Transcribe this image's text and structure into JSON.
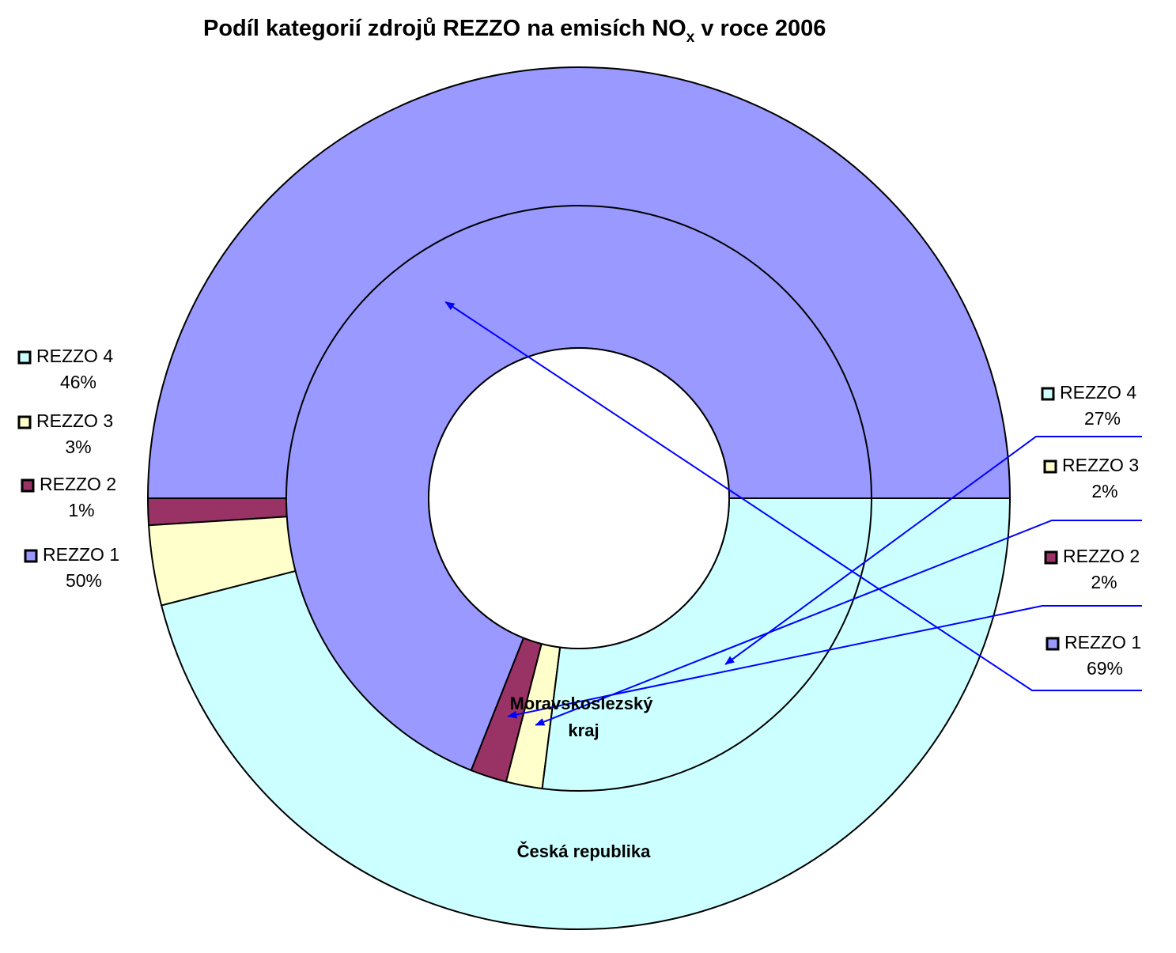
{
  "chart_data": {
    "type": "donut",
    "title_main": "Podíl kategorií zdrojů REZZO na emisích NO",
    "title_sub": "x",
    "title_tail": " v roce 2006",
    "categories": [
      "REZZO 1",
      "REZZO 2",
      "REZZO 3",
      "REZZO 4"
    ],
    "colors": {
      "REZZO 1": "#9999ff",
      "REZZO 2": "#993366",
      "REZZO 3": "#ffffcc",
      "REZZO 4": "#ccffff"
    },
    "leader_line_color": "#0000ff",
    "start_angle": "3 o'clock, counterclockwise",
    "series": [
      {
        "name": "Česká republika",
        "ring": "outer",
        "values": [
          50,
          1,
          3,
          46
        ],
        "labels": [
          "50%",
          "1%",
          "3%",
          "46%"
        ],
        "legend_position": "left"
      },
      {
        "name": "Moravskoslezský kraj",
        "name_lines": [
          "Moravskoslezský",
          "kraj"
        ],
        "ring": "inner",
        "values": [
          69,
          2,
          2,
          27
        ],
        "labels": [
          "69%",
          "2%",
          "2%",
          "27%"
        ],
        "legend_position": "right"
      }
    ]
  }
}
